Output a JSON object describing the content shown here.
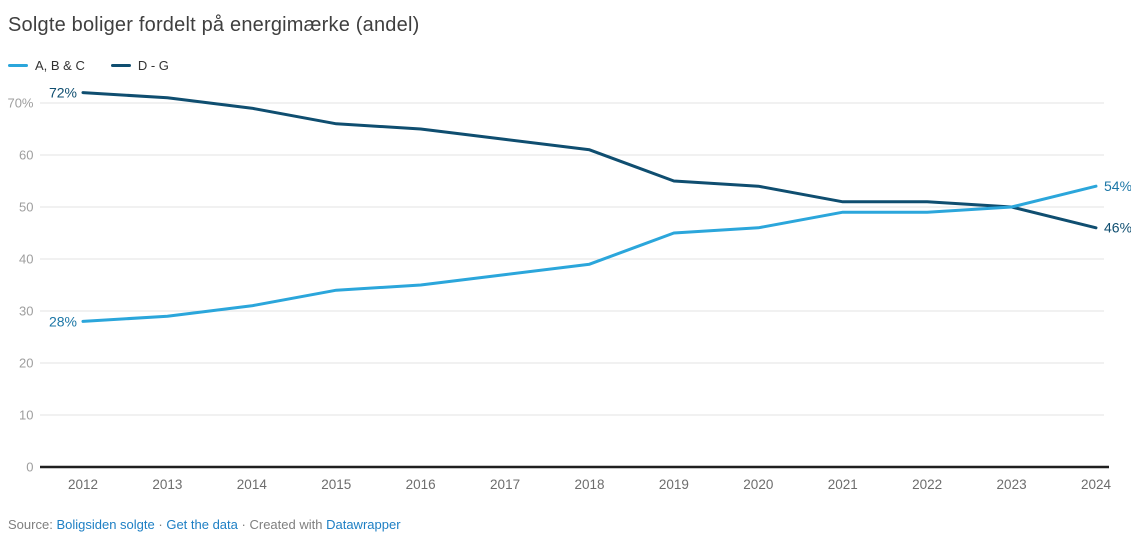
{
  "title": "Solgte boliger fordelt på energimærke (andel)",
  "legend": [
    {
      "label": "A, B & C",
      "color": "#2ba6db"
    },
    {
      "label": "D - G",
      "color": "#0f4e70"
    }
  ],
  "chart_data": {
    "type": "line",
    "x": [
      2012,
      2013,
      2014,
      2015,
      2016,
      2017,
      2018,
      2019,
      2020,
      2021,
      2022,
      2023,
      2024
    ],
    "series": [
      {
        "name": "A, B & C",
        "color": "#2ba6db",
        "label_color": "#1b76a6",
        "values": [
          28,
          29,
          31,
          34,
          35,
          37,
          39,
          45,
          46,
          49,
          49,
          50,
          54
        ],
        "start_label": "28%",
        "end_label": "54%"
      },
      {
        "name": "D - G",
        "color": "#0f4e70",
        "label_color": "#0f4e70",
        "values": [
          72,
          71,
          69,
          66,
          65,
          63,
          61,
          55,
          54,
          51,
          51,
          50,
          46
        ],
        "start_label": "72%",
        "end_label": "46%"
      }
    ],
    "ylim": [
      0,
      70
    ],
    "yticks": [
      0,
      10,
      20,
      30,
      40,
      50,
      60,
      70
    ],
    "ytick_labels": [
      "0",
      "10",
      "20",
      "30",
      "40",
      "50",
      "60",
      "70%"
    ],
    "xtick_labels": [
      "2012",
      "2013",
      "2014",
      "2015",
      "2016",
      "2017",
      "2018",
      "2019",
      "2020",
      "2021",
      "2022",
      "2023",
      "2024"
    ],
    "grid": "horizontal",
    "legend_position": "top-left"
  },
  "styles": {
    "grid_color": "#e3e3e3",
    "zero_line_color": "#1f1f1f",
    "ytick_color": "#9e9e9e",
    "xtick_color": "#6d6d6d",
    "link_color": "#1d7fc4",
    "footer_text_color": "#7f7f7f",
    "title_color": "#3f3f3f"
  },
  "footer": {
    "prefix": "Source:",
    "source": "Boligsiden solgte",
    "sep": "·",
    "get_data": "Get the data",
    "created": "Created with",
    "tool": "Datawrapper"
  }
}
